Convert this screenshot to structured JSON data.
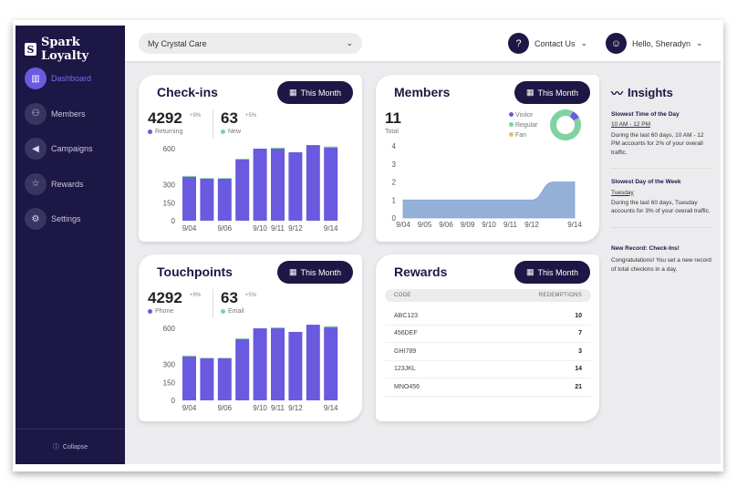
{
  "app": {
    "name": "Spark Loyalty",
    "logo_letter": "S"
  },
  "sidebar": {
    "items": [
      {
        "label": "Dashboard",
        "icon": "chart-icon",
        "active": true
      },
      {
        "label": "Members",
        "icon": "people-icon"
      },
      {
        "label": "Campaigns",
        "icon": "megaphone-icon"
      },
      {
        "label": "Rewards",
        "icon": "star-icon"
      },
      {
        "label": "Settings",
        "icon": "gear-icon"
      }
    ],
    "collapse": "Collapse"
  },
  "header": {
    "location": "My Crystal Care",
    "contact": "Contact Us",
    "user": "Hello, Sheradyn"
  },
  "checkins": {
    "title": "Check-ins",
    "period": "This Month",
    "stat1": {
      "value": "4292",
      "change": "+9%",
      "label": "Returning"
    },
    "stat2": {
      "value": "63",
      "change": "+5%",
      "label": "New"
    }
  },
  "members": {
    "title": "Members",
    "period": "This Month",
    "total": "11",
    "total_label": "Total",
    "legend": [
      {
        "name": "Visitor",
        "color": "#6a5ae0"
      },
      {
        "name": "Regular",
        "color": "#7fd3a0"
      },
      {
        "name": "Fan",
        "color": "#e8c07a"
      }
    ]
  },
  "touchpoints": {
    "title": "Touchpoints",
    "period": "This Month",
    "stat1": {
      "value": "4292",
      "change": "+9%",
      "label": "Phone"
    },
    "stat2": {
      "value": "63",
      "change": "+5%",
      "label": "Email"
    }
  },
  "rewards": {
    "title": "Rewards",
    "period": "This Month",
    "columns": [
      "CODE",
      "REDEMPTIONS"
    ],
    "rows": [
      {
        "code": "ABC123",
        "redemptions": "10"
      },
      {
        "code": "456DEF",
        "redemptions": "7"
      },
      {
        "code": "GHI789",
        "redemptions": "3"
      },
      {
        "code": "123JKL",
        "redemptions": "14"
      },
      {
        "code": "MNO456",
        "redemptions": "21"
      }
    ]
  },
  "insights": {
    "title": "Insights",
    "items": [
      {
        "title": "Slowest Time of the Day",
        "highlight": "10 AM - 12 PM",
        "text": "During the last 60 days, 10 AM - 12 PM accounts for 2% of your overall traffic."
      },
      {
        "title": "Slowest Day of the Week",
        "highlight": "Tuesday",
        "text": "During the last 60 days, Tuesday accounts for 3% of your overall traffic."
      },
      {
        "title": "New Record: Check-Ins!",
        "highlight": "",
        "text": "Congratulations! You set a new record of total checkins in a day."
      }
    ]
  },
  "colors": {
    "primary": "#1c1744",
    "accent": "#6a5ae0",
    "green": "#7fd3a0",
    "area": "#94b0d6"
  },
  "chart_data": [
    {
      "type": "bar",
      "stacked": true,
      "title": "Check-ins",
      "categories": [
        "9/04",
        "",
        "9/06",
        "",
        "9/10",
        "9/11",
        "9/12",
        "",
        "9/14"
      ],
      "yticks": [
        0,
        150,
        300,
        600
      ],
      "ylim": [
        0,
        600
      ],
      "series": [
        {
          "name": "Returning",
          "color": "#6a5ae0",
          "values": [
            365,
            350,
            350,
            510,
            600,
            600,
            570,
            630,
            610
          ]
        },
        {
          "name": "New",
          "color": "#7fd3a0",
          "values": [
            8,
            5,
            5,
            6,
            0,
            8,
            0,
            0,
            8
          ]
        }
      ]
    },
    {
      "type": "area",
      "title": "Members",
      "categories": [
        "9/04",
        "9/05",
        "9/06",
        "9/09",
        "9/10",
        "9/11",
        "9/12",
        "",
        "9/14"
      ],
      "yticks": [
        0,
        1,
        2,
        3,
        4
      ],
      "ylim": [
        0,
        4
      ],
      "values": [
        1,
        1,
        1,
        1,
        1,
        1,
        1,
        2,
        2
      ]
    },
    {
      "type": "pie",
      "donut": true,
      "categories": [
        "Visitor",
        "Regular",
        "Fan"
      ],
      "values": [
        1,
        10,
        0
      ]
    },
    {
      "type": "bar",
      "stacked": true,
      "title": "Touchpoints",
      "categories": [
        "9/04",
        "",
        "9/06",
        "",
        "9/10",
        "9/11",
        "9/12",
        "",
        "9/14"
      ],
      "yticks": [
        0,
        150,
        300,
        600
      ],
      "ylim": [
        0,
        600
      ],
      "series": [
        {
          "name": "Phone",
          "color": "#6a5ae0",
          "values": [
            365,
            350,
            350,
            510,
            600,
            600,
            570,
            630,
            610
          ]
        },
        {
          "name": "Email",
          "color": "#7fd3a0",
          "values": [
            8,
            5,
            5,
            6,
            0,
            8,
            0,
            0,
            8
          ]
        }
      ]
    }
  ]
}
